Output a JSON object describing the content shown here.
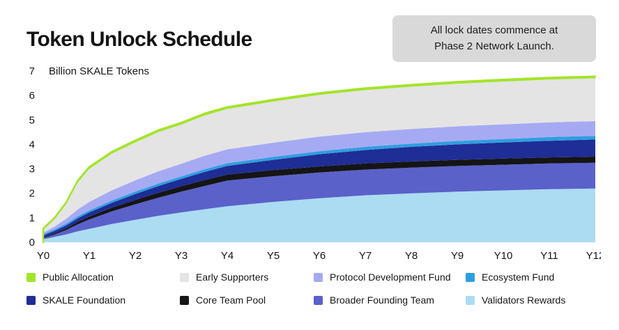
{
  "page": {
    "title": "Token Unlock Schedule",
    "note": {
      "line1": "All lock dates commence at",
      "line2": "Phase 2 Network Launch."
    }
  },
  "chart_data": {
    "type": "area",
    "stacked": true,
    "title": "Token Unlock Schedule",
    "unit_label": "Billion SKALE Tokens",
    "ylim": [
      0,
      7
    ],
    "y_ticks": [
      0,
      1,
      2,
      3,
      4,
      5,
      6,
      7
    ],
    "x_tick_labels": [
      "Y0",
      "Y1",
      "Y2",
      "Y3",
      "Y4",
      "Y5",
      "Y6",
      "Y7",
      "Y8",
      "Y9",
      "Y10",
      "Y11",
      "Y12"
    ],
    "x": [
      0,
      0.25,
      0.5,
      0.75,
      1,
      1.5,
      2,
      2.5,
      3,
      3.5,
      4,
      5,
      6,
      7,
      8,
      9,
      10,
      11,
      12
    ],
    "grid": false,
    "legend_position": "bottom",
    "series": [
      {
        "name": "Validators Rewards",
        "color": "#abdcf2",
        "values": [
          0.12,
          0.22,
          0.32,
          0.45,
          0.55,
          0.75,
          0.92,
          1.08,
          1.22,
          1.35,
          1.47,
          1.65,
          1.8,
          1.92,
          2.0,
          2.07,
          2.12,
          2.17,
          2.2
        ]
      },
      {
        "name": "Broader Founding Team",
        "color": "#5a61c9",
        "values": [
          0.05,
          0.1,
          0.18,
          0.28,
          0.38,
          0.52,
          0.63,
          0.74,
          0.85,
          0.95,
          1.05,
          1.05,
          1.05,
          1.05,
          1.05,
          1.05,
          1.05,
          1.05,
          1.05
        ]
      },
      {
        "name": "Core Team Pool",
        "color": "#151515",
        "values": [
          0.03,
          0.05,
          0.07,
          0.1,
          0.12,
          0.15,
          0.18,
          0.2,
          0.22,
          0.24,
          0.25,
          0.25,
          0.25,
          0.25,
          0.25,
          0.25,
          0.25,
          0.25,
          0.25
        ]
      },
      {
        "name": "SKALE Foundation",
        "color": "#1f2d96",
        "values": [
          0.08,
          0.1,
          0.12,
          0.15,
          0.17,
          0.2,
          0.24,
          0.28,
          0.3,
          0.33,
          0.35,
          0.42,
          0.5,
          0.55,
          0.6,
          0.63,
          0.66,
          0.68,
          0.7
        ]
      },
      {
        "name": "Ecosystem Fund",
        "color": "#2f9ee0",
        "values": [
          0.05,
          0.06,
          0.07,
          0.08,
          0.08,
          0.09,
          0.1,
          0.1,
          0.1,
          0.11,
          0.11,
          0.12,
          0.12,
          0.13,
          0.13,
          0.14,
          0.14,
          0.15,
          0.15
        ]
      },
      {
        "name": "Protocol Development Fund",
        "color": "#a6aaf2",
        "values": [
          0.06,
          0.12,
          0.2,
          0.28,
          0.35,
          0.42,
          0.46,
          0.5,
          0.52,
          0.55,
          0.57,
          0.58,
          0.6,
          0.6,
          0.6,
          0.6,
          0.6,
          0.6,
          0.6
        ]
      },
      {
        "name": "Early Supporters",
        "color": "#e4e4e4",
        "values": [
          0.12,
          0.3,
          0.6,
          1.1,
          1.35,
          1.5,
          1.55,
          1.6,
          1.6,
          1.65,
          1.65,
          1.68,
          1.7,
          1.72,
          1.73,
          1.74,
          1.75,
          1.75,
          1.75
        ]
      },
      {
        "name": "Public Allocation",
        "color": "#a3e42a",
        "values": [
          0.05,
          0.06,
          0.07,
          0.08,
          0.08,
          0.08,
          0.08,
          0.08,
          0.08,
          0.08,
          0.08,
          0.08,
          0.08,
          0.08,
          0.08,
          0.08,
          0.08,
          0.08,
          0.08
        ]
      }
    ],
    "legend_rows": [
      [
        "Public Allocation",
        "Early Supporters",
        "Protocol Development Fund",
        "Ecosystem Fund"
      ],
      [
        "SKALE Foundation",
        "Core Team Pool",
        "Broader Founding Team",
        "Validators Rewards"
      ]
    ]
  }
}
